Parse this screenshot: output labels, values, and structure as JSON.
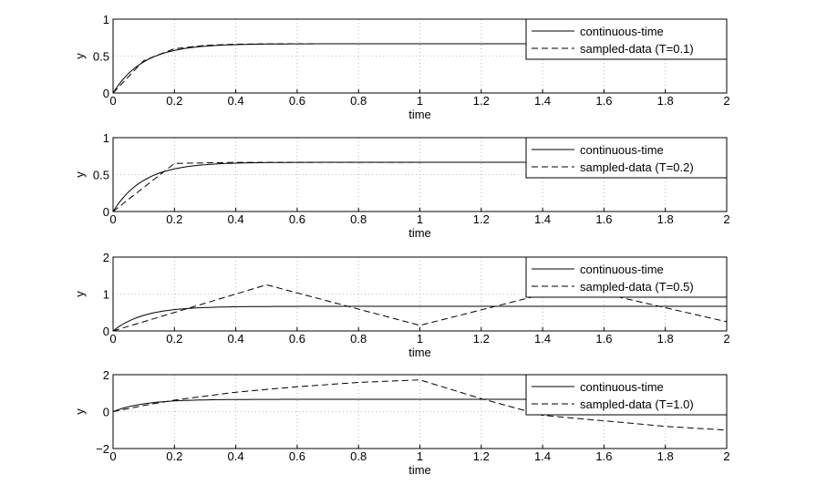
{
  "chart_data": [
    {
      "type": "line",
      "xlabel": "time",
      "ylabel": "y",
      "xlim": [
        0,
        2
      ],
      "ylim": [
        0,
        1
      ],
      "xticks": [
        "0",
        "0.2",
        "0.4",
        "0.6",
        "0.8",
        "1",
        "1.2",
        "1.4",
        "1.6",
        "1.8",
        "2"
      ],
      "yticks": [
        "0",
        "0.5",
        "1"
      ],
      "yvals": [
        0,
        0.5,
        1
      ],
      "grid": true,
      "legend": "top-right",
      "series": [
        {
          "name": "continuous-time",
          "style": "solid",
          "tau": 0.1,
          "final": 0.667
        },
        {
          "name": "sampled-data (T=0.1)",
          "style": "dashed",
          "x": [
            0,
            0.1,
            0.2,
            0.3,
            0.4,
            0.5,
            0.6,
            0.8,
            1,
            1.5,
            2
          ],
          "y": [
            0,
            0.44,
            0.6,
            0.645,
            0.66,
            0.665,
            0.667,
            0.667,
            0.667,
            0.667,
            0.667
          ]
        }
      ]
    },
    {
      "type": "line",
      "xlabel": "time",
      "ylabel": "y",
      "xlim": [
        0,
        2
      ],
      "ylim": [
        0,
        1
      ],
      "xticks": [
        "0",
        "0.2",
        "0.4",
        "0.6",
        "0.8",
        "1",
        "1.2",
        "1.4",
        "1.6",
        "1.8",
        "2"
      ],
      "yticks": [
        "0",
        "0.5",
        "1"
      ],
      "yvals": [
        0,
        0.5,
        1
      ],
      "grid": true,
      "legend": "top-right",
      "series": [
        {
          "name": "continuous-time",
          "style": "solid",
          "tau": 0.1,
          "final": 0.667
        },
        {
          "name": "sampled-data (T=0.2)",
          "style": "dashed",
          "x": [
            0,
            0.2,
            0.4,
            2
          ],
          "y": [
            0,
            0.65,
            0.665,
            0.667
          ]
        }
      ]
    },
    {
      "type": "line",
      "xlabel": "time",
      "ylabel": "y",
      "xlim": [
        0,
        2
      ],
      "ylim": [
        0,
        2
      ],
      "xticks": [
        "0",
        "0.2",
        "0.4",
        "0.6",
        "0.8",
        "1",
        "1.2",
        "1.4",
        "1.6",
        "1.8",
        "2"
      ],
      "yticks": [
        "0",
        "1",
        "2"
      ],
      "yvals": [
        0,
        1,
        2
      ],
      "grid": true,
      "legend": "top-right",
      "series": [
        {
          "name": "continuous-time",
          "style": "solid",
          "tau": 0.1,
          "final": 0.667
        },
        {
          "name": "sampled-data (T=0.5)",
          "style": "dashed",
          "x": [
            0,
            0.5,
            1,
            1.5,
            2
          ],
          "y": [
            0,
            1.25,
            0.15,
            1.2,
            0.25
          ]
        }
      ]
    },
    {
      "type": "line",
      "xlabel": "time",
      "ylabel": "y",
      "xlim": [
        0,
        2
      ],
      "ylim": [
        -2,
        2
      ],
      "xticks": [
        "0",
        "0.2",
        "0.4",
        "0.6",
        "0.8",
        "1",
        "1.2",
        "1.4",
        "1.6",
        "1.8",
        "2"
      ],
      "yticks": [
        "−2",
        "0",
        "2"
      ],
      "yvals": [
        -2,
        0,
        2
      ],
      "grid": true,
      "legend": "top-right",
      "series": [
        {
          "name": "continuous-time",
          "style": "solid",
          "tau": 0.1,
          "final": 0.667
        },
        {
          "name": "sampled-data (T=1.0)",
          "style": "dashed",
          "x": [
            0,
            0.1,
            0.2,
            0.4,
            0.6,
            0.8,
            1,
            1.2,
            1.4,
            1.6,
            1.8,
            2
          ],
          "y": [
            0,
            0.33,
            0.62,
            1.05,
            1.35,
            1.58,
            1.72,
            0.7,
            -0.2,
            -0.5,
            -0.8,
            -1.0
          ]
        }
      ]
    }
  ]
}
